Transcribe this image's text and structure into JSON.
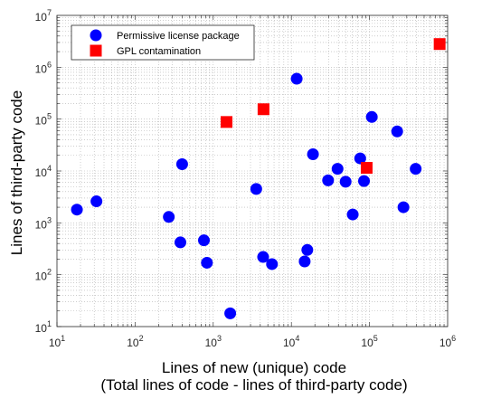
{
  "chart_data": {
    "type": "scatter",
    "x_scale": "log",
    "y_scale": "log",
    "xlim": [
      10,
      1000000
    ],
    "ylim": [
      10,
      10000000
    ],
    "x_ticks": [
      {
        "value": 10,
        "base": "10",
        "exp": "1"
      },
      {
        "value": 100,
        "base": "10",
        "exp": "2"
      },
      {
        "value": 1000,
        "base": "10",
        "exp": "3"
      },
      {
        "value": 10000,
        "base": "10",
        "exp": "4"
      },
      {
        "value": 100000,
        "base": "10",
        "exp": "5"
      },
      {
        "value": 1000000,
        "base": "10",
        "exp": "6"
      }
    ],
    "y_ticks": [
      {
        "value": 10,
        "base": "10",
        "exp": "1"
      },
      {
        "value": 100,
        "base": "10",
        "exp": "2"
      },
      {
        "value": 1000,
        "base": "10",
        "exp": "3"
      },
      {
        "value": 10000,
        "base": "10",
        "exp": "4"
      },
      {
        "value": 100000,
        "base": "10",
        "exp": "5"
      },
      {
        "value": 1000000,
        "base": "10",
        "exp": "6"
      },
      {
        "value": 10000000,
        "base": "10",
        "exp": "7"
      }
    ],
    "xlabel_line1": "Lines of new (unique) code",
    "xlabel_line2": "(Total lines of code - lines of third-party code)",
    "ylabel": "Lines of third-party code",
    "grid": "major and minor, dotted",
    "legend_position": "top-left",
    "series": [
      {
        "name": "Permissive license package",
        "marker": "circle",
        "color": "#0000FF",
        "points": [
          {
            "x": 18,
            "y": 1800
          },
          {
            "x": 32,
            "y": 2600
          },
          {
            "x": 270,
            "y": 1300
          },
          {
            "x": 380,
            "y": 420
          },
          {
            "x": 400,
            "y": 13500
          },
          {
            "x": 760,
            "y": 460
          },
          {
            "x": 830,
            "y": 170
          },
          {
            "x": 1650,
            "y": 18
          },
          {
            "x": 3550,
            "y": 4500
          },
          {
            "x": 4350,
            "y": 220
          },
          {
            "x": 5650,
            "y": 160
          },
          {
            "x": 11700,
            "y": 600000
          },
          {
            "x": 14800,
            "y": 180
          },
          {
            "x": 16000,
            "y": 300
          },
          {
            "x": 18900,
            "y": 21000
          },
          {
            "x": 29500,
            "y": 6600
          },
          {
            "x": 39000,
            "y": 11000
          },
          {
            "x": 49500,
            "y": 6200
          },
          {
            "x": 61000,
            "y": 1450
          },
          {
            "x": 76000,
            "y": 17500
          },
          {
            "x": 85000,
            "y": 6400
          },
          {
            "x": 107000,
            "y": 110000
          },
          {
            "x": 226000,
            "y": 58000
          },
          {
            "x": 272000,
            "y": 2000
          },
          {
            "x": 390000,
            "y": 11000
          }
        ]
      },
      {
        "name": "GPL contamination",
        "marker": "square",
        "color": "#FF0000",
        "points": [
          {
            "x": 1480,
            "y": 88000
          },
          {
            "x": 4400,
            "y": 155000
          },
          {
            "x": 92000,
            "y": 11500
          },
          {
            "x": 790000,
            "y": 2800000
          }
        ]
      }
    ]
  }
}
